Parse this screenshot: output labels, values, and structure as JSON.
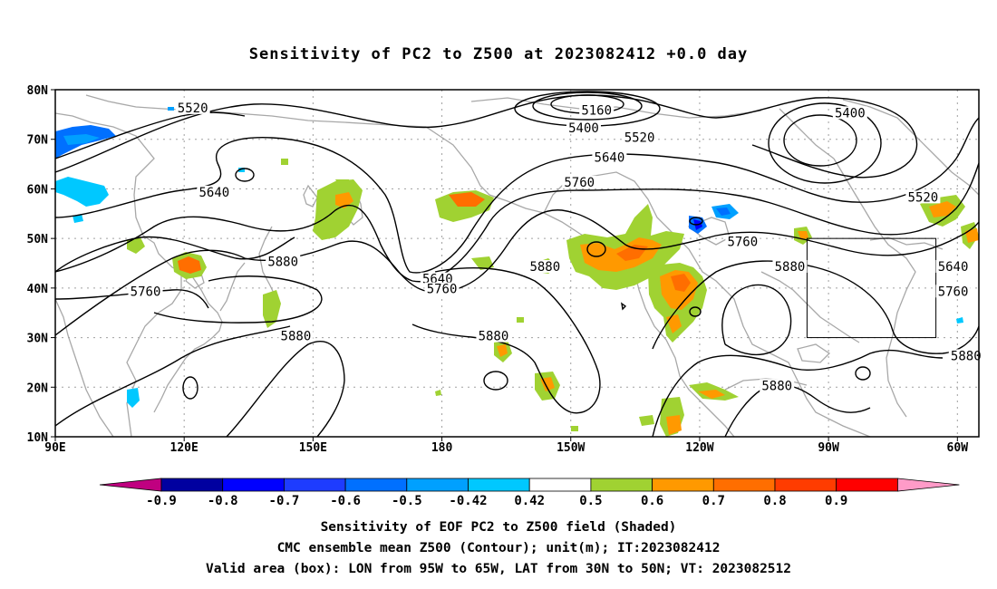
{
  "title": "Sensitivity of PC2 to Z500 at 2023082412 +0.0 day",
  "map": {
    "lon_range": [
      90,
      305
    ],
    "lat_range": [
      10,
      80
    ],
    "lon_labels": [
      {
        "lon": 90,
        "text": "90E"
      },
      {
        "lon": 120,
        "text": "120E"
      },
      {
        "lon": 150,
        "text": "150E"
      },
      {
        "lon": 180,
        "text": "180"
      },
      {
        "lon": 210,
        "text": "150W"
      },
      {
        "lon": 240,
        "text": "120W"
      },
      {
        "lon": 270,
        "text": "90W"
      },
      {
        "lon": 300,
        "text": "60W"
      }
    ],
    "lat_labels": [
      {
        "lat": 80,
        "text": "80N"
      },
      {
        "lat": 70,
        "text": "70N"
      },
      {
        "lat": 60,
        "text": "60N"
      },
      {
        "lat": 50,
        "text": "50N"
      },
      {
        "lat": 40,
        "text": "40N"
      },
      {
        "lat": 30,
        "text": "30N"
      },
      {
        "lat": 20,
        "text": "20N"
      },
      {
        "lat": 10,
        "text": "10N"
      }
    ],
    "contour_labels": [
      {
        "text": "5520",
        "lon": 122,
        "lat": 76
      },
      {
        "text": "5160",
        "lon": 216,
        "lat": 75.5
      },
      {
        "text": "5400",
        "lon": 213,
        "lat": 72
      },
      {
        "text": "5520",
        "lon": 226,
        "lat": 70
      },
      {
        "text": "5400",
        "lon": 275,
        "lat": 75
      },
      {
        "text": "5640",
        "lon": 219,
        "lat": 66
      },
      {
        "text": "5760",
        "lon": 212,
        "lat": 61
      },
      {
        "text": "5640",
        "lon": 127,
        "lat": 59
      },
      {
        "text": "5520",
        "lon": 292,
        "lat": 58
      },
      {
        "text": "5880",
        "lon": 143,
        "lat": 45
      },
      {
        "text": "5640",
        "lon": 179,
        "lat": 41.5
      },
      {
        "text": "5760",
        "lon": 180,
        "lat": 39.5
      },
      {
        "text": "5760",
        "lon": 111,
        "lat": 39
      },
      {
        "text": "5880",
        "lon": 204,
        "lat": 44
      },
      {
        "text": "5760",
        "lon": 250,
        "lat": 49
      },
      {
        "text": "5880",
        "lon": 261,
        "lat": 44
      },
      {
        "text": "5640",
        "lon": 299,
        "lat": 44
      },
      {
        "text": "5760",
        "lon": 299,
        "lat": 39
      },
      {
        "text": "5880",
        "lon": 146,
        "lat": 30
      },
      {
        "text": "5880",
        "lon": 192,
        "lat": 30
      },
      {
        "text": "5880",
        "lon": 302,
        "lat": 26
      },
      {
        "text": "5880",
        "lon": 258,
        "lat": 20
      }
    ],
    "valid_box": {
      "lon": [
        265,
        295
      ],
      "lat": [
        30,
        50
      ]
    },
    "colors": {
      "contour": "#000000",
      "coast": "#a8a8a8",
      "grid": "#a0a0a0"
    }
  },
  "colorbar": {
    "labels": [
      "-0.9",
      "-0.8",
      "-0.7",
      "-0.6",
      "-0.5",
      "-0.42",
      "0.42",
      "0.5",
      "0.6",
      "0.7",
      "0.8",
      "0.9"
    ],
    "colors": [
      "#c00080",
      "#0000a0",
      "#0000ff",
      "#1e3cff",
      "#0070ff",
      "#00a0ff",
      "#00c8ff",
      "#ffffff",
      "#a0d232",
      "#ff9900",
      "#ff6e00",
      "#ff3c00",
      "#ff0000",
      "#ff9bc8"
    ]
  },
  "captions": [
    "Sensitivity of EOF PC2 to Z500 field (Shaded)",
    "CMC ensemble mean Z500 (Contour); unit(m); IT:2023082412",
    "Valid area (box): LON from 95W to 65W, LAT from 30N to 50N; VT: 2023082512"
  ]
}
